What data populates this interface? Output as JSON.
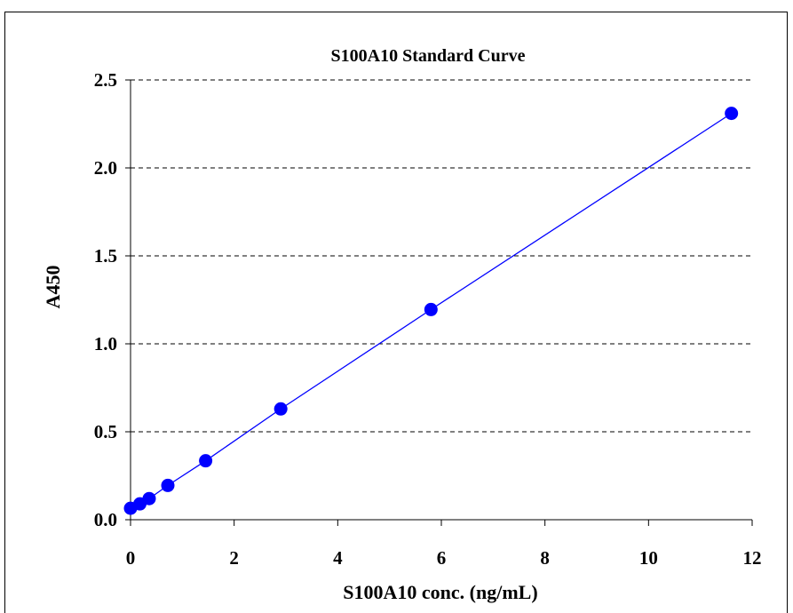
{
  "chart_data": {
    "type": "scatter",
    "title": "S100A10 Standard Curve",
    "xlabel": "S100A10 conc. (ng/mL)",
    "ylabel": "A450",
    "xlim": [
      0,
      12
    ],
    "ylim": [
      0,
      2.5
    ],
    "xticks": [
      "0",
      "2",
      "4",
      "6",
      "8",
      "10",
      "12"
    ],
    "yticks": [
      "0.0",
      "0.5",
      "1.0",
      "1.5",
      "2.0",
      "2.5"
    ],
    "grid": "horizontal dashed",
    "series": [
      {
        "x": [
          0,
          0.18,
          0.36,
          0.72,
          1.45,
          2.9,
          5.8,
          11.6
        ],
        "y": [
          0.065,
          0.09,
          0.12,
          0.195,
          0.335,
          0.63,
          1.195,
          2.31
        ],
        "color": "#0000FF",
        "line": "fitted"
      }
    ],
    "fit": {
      "slope": 0.193,
      "intercept": 0.07
    }
  }
}
